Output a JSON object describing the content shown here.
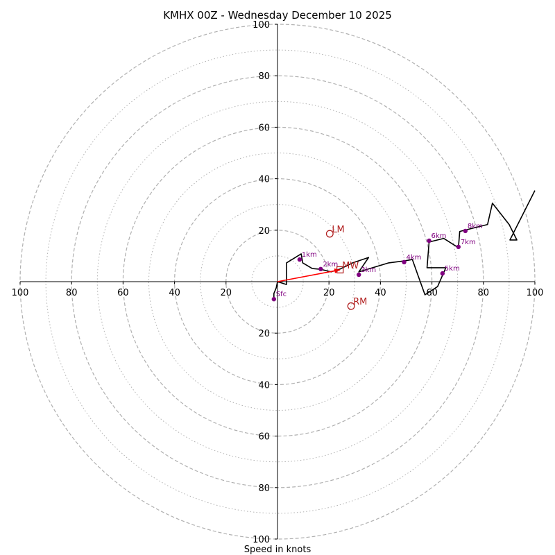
{
  "chart_data": {
    "type": "scatter",
    "subtype": "hodograph",
    "title": "KMHX 00Z - Wednesday December 10 2025",
    "xlabel": "Speed in knots",
    "range": [
      -100,
      100
    ],
    "ring_speeds_major": [
      20,
      40,
      60,
      80,
      100
    ],
    "ring_speeds_minor": [
      10,
      30,
      50,
      70,
      90
    ],
    "x_ticks": [
      {
        "value": -100,
        "label": "100"
      },
      {
        "value": -80,
        "label": "80"
      },
      {
        "value": -60,
        "label": "60"
      },
      {
        "value": -40,
        "label": "40"
      },
      {
        "value": -20,
        "label": "20"
      },
      {
        "value": 20,
        "label": "20"
      },
      {
        "value": 40,
        "label": "40"
      },
      {
        "value": 60,
        "label": "60"
      },
      {
        "value": 80,
        "label": "80"
      },
      {
        "value": 100,
        "label": "100"
      }
    ],
    "y_ticks": [
      {
        "value": 100,
        "label": "100"
      },
      {
        "value": 80,
        "label": "80"
      },
      {
        "value": 60,
        "label": "60"
      },
      {
        "value": 40,
        "label": "40"
      },
      {
        "value": 20,
        "label": "20"
      },
      {
        "value": -20,
        "label": "20"
      },
      {
        "value": -40,
        "label": "40"
      },
      {
        "value": -60,
        "label": "60"
      },
      {
        "value": -80,
        "label": "80"
      },
      {
        "value": -100,
        "label": "100"
      }
    ],
    "trace": {
      "color": "#000000",
      "points": [
        [
          -1.4,
          -6.8
        ],
        [
          -1.4,
          -4.6
        ],
        [
          -0.5,
          -2.4
        ],
        [
          0,
          0
        ],
        [
          3.5,
          -1.1
        ],
        [
          3.5,
          7.3
        ],
        [
          9.2,
          10.8
        ],
        [
          9.8,
          7.3
        ],
        [
          13.5,
          5.1
        ],
        [
          16.8,
          4.8
        ],
        [
          20.8,
          3.8
        ],
        [
          24.3,
          4.9
        ],
        [
          29.2,
          7.3
        ],
        [
          35.4,
          9.4
        ],
        [
          31.6,
          3.8
        ],
        [
          43.2,
          7.3
        ],
        [
          49.5,
          8.1
        ],
        [
          52.4,
          8.6
        ],
        [
          54.6,
          2.4
        ],
        [
          57.3,
          -5.1
        ],
        [
          62.2,
          -1.9
        ],
        [
          65.4,
          5.4
        ],
        [
          58.1,
          5.4
        ],
        [
          58.9,
          15.4
        ],
        [
          64.6,
          16.8
        ],
        [
          70.3,
          13.2
        ],
        [
          70.8,
          19.5
        ],
        [
          81.6,
          22.2
        ],
        [
          83.5,
          30.5
        ],
        [
          90,
          22.2
        ],
        [
          93,
          16.2
        ],
        [
          90.3,
          16.2
        ],
        [
          100,
          35.4
        ]
      ]
    },
    "height_markers": [
      {
        "label": "Sfc",
        "u": -1.4,
        "v": -6.8
      },
      {
        "label": "1km",
        "u": 8.6,
        "v": 8.6
      },
      {
        "label": "2km",
        "u": 16.8,
        "v": 4.9
      },
      {
        "label": "3km",
        "u": 31.6,
        "v": 2.7
      },
      {
        "label": "4km",
        "u": 49.2,
        "v": 7.6
      },
      {
        "label": "5km",
        "u": 64.1,
        "v": 3.2
      },
      {
        "label": "6km",
        "u": 58.9,
        "v": 15.9
      },
      {
        "label": "7km",
        "u": 70.3,
        "v": 13.5
      },
      {
        "label": "8km",
        "u": 73,
        "v": 19.7
      }
    ],
    "motion_markers": [
      {
        "label": "LM",
        "u": 20.3,
        "v": 18.6,
        "shape": "circle"
      },
      {
        "label": "MW",
        "u": 24.3,
        "v": 4.6,
        "shape": "square"
      },
      {
        "label": "RM",
        "u": 28.6,
        "v": -9.5,
        "shape": "circle"
      }
    ],
    "mean_wind_vector": {
      "from": [
        0,
        0
      ],
      "to": [
        24.3,
        4.6
      ],
      "color": "#ff0000"
    },
    "colors": {
      "ring": "#b0b0b0",
      "height_marker": "#800080",
      "motion_marker": "#b22222",
      "axis": "#000000"
    }
  }
}
